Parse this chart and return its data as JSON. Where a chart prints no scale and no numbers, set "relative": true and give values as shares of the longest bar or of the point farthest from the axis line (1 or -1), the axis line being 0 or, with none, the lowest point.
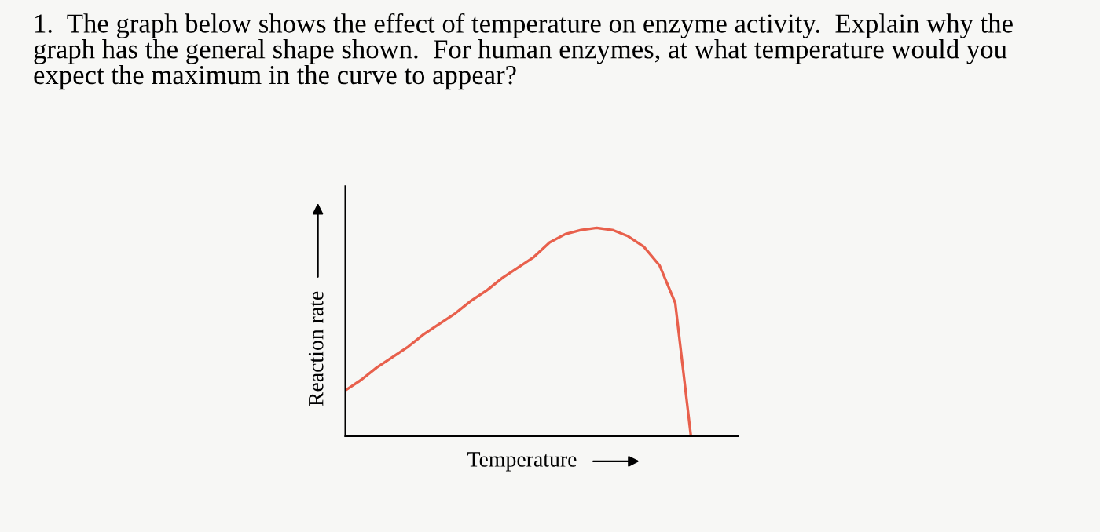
{
  "chart_data": {
    "type": "line",
    "relative": true,
    "title": "1.  The graph below shows the effect of temperature on enzyme activity.  Explain why the\ngraph has the general shape shown.  For human enzymes, at what temperature would you\nexpect the maximum in the curve to appear?",
    "xlabel": "Temperature",
    "ylabel": "Reaction rate",
    "categories": [
      null,
      null,
      null,
      null,
      null,
      null,
      null,
      null,
      null,
      null,
      null,
      null,
      null,
      null,
      null,
      null,
      null,
      null,
      null,
      null,
      null,
      null,
      null,
      null,
      null,
      null
    ],
    "series": [
      {
        "color": "#e8604c",
        "values": [
          0.22,
          0.27,
          0.33,
          0.38,
          0.43,
          0.49,
          0.54,
          0.59,
          0.65,
          0.7,
          0.76,
          0.81,
          0.86,
          0.93,
          0.97,
          0.99,
          1,
          0.99,
          0.96,
          0.91,
          0.82,
          0.64,
          0,
          null,
          null,
          null
        ]
      }
    ],
    "grid": false
  }
}
